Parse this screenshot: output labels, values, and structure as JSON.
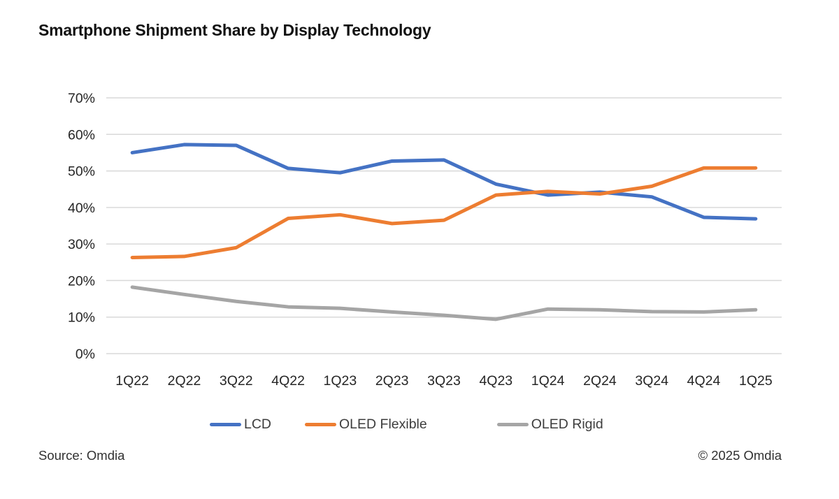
{
  "title": "Smartphone Shipment Share by Display Technology",
  "source": "Source: Omdia",
  "copyright": "© 2025 Omdia",
  "colors": {
    "gridline": "#D9D9D9",
    "axis_text": "#262626",
    "legend_text": "#3d3d3d",
    "title_text": "#111111"
  },
  "chart_data": {
    "type": "line",
    "title": "Smartphone Shipment Share by Display Technology",
    "xlabel": "",
    "ylabel": "",
    "ylim": [
      0,
      70
    ],
    "grid": "horizontal",
    "legend_position": "bottom",
    "categories": [
      "1Q22",
      "2Q22",
      "3Q22",
      "4Q22",
      "1Q23",
      "2Q23",
      "3Q23",
      "4Q23",
      "1Q24",
      "2Q24",
      "3Q24",
      "4Q24",
      "1Q25"
    ],
    "yticks": [
      {
        "value": 0,
        "label": "0%"
      },
      {
        "value": 10,
        "label": "10%"
      },
      {
        "value": 20,
        "label": "20%"
      },
      {
        "value": 30,
        "label": "30%"
      },
      {
        "value": 40,
        "label": "40%"
      },
      {
        "value": 50,
        "label": "50%"
      },
      {
        "value": 60,
        "label": "60%"
      },
      {
        "value": 70,
        "label": "70%"
      }
    ],
    "series": [
      {
        "name": "LCD",
        "color": "#4472C4",
        "values": [
          55.0,
          57.2,
          57.0,
          50.7,
          49.5,
          52.7,
          53.0,
          46.4,
          43.4,
          44.2,
          42.9,
          37.3,
          36.9
        ]
      },
      {
        "name": "OLED Flexible",
        "color": "#ED7D31",
        "values": [
          26.3,
          26.6,
          29.0,
          37.0,
          38.0,
          35.6,
          36.5,
          43.4,
          44.4,
          43.7,
          45.8,
          50.8,
          50.8
        ]
      },
      {
        "name": "OLED Rigid",
        "color": "#A5A5A5",
        "values": [
          18.2,
          16.2,
          14.3,
          12.8,
          12.4,
          11.4,
          10.5,
          9.4,
          12.2,
          12.0,
          11.5,
          11.4,
          12.0
        ]
      }
    ]
  }
}
